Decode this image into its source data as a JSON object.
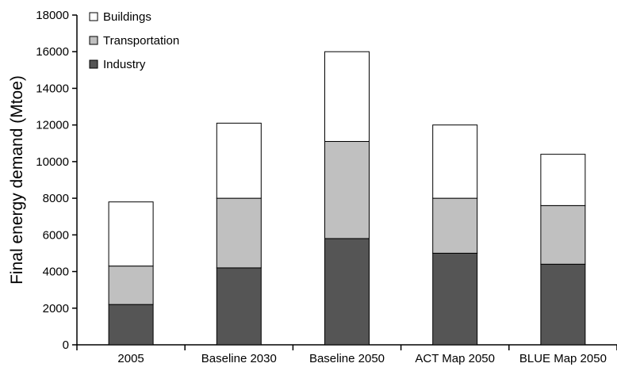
{
  "chart_data": {
    "type": "bar",
    "stacked": true,
    "title": "",
    "xlabel": "",
    "ylabel": "Final energy demand (Mtoe)",
    "ylim": [
      0,
      18000
    ],
    "yticks": [
      0,
      2000,
      4000,
      6000,
      8000,
      10000,
      12000,
      14000,
      16000,
      18000
    ],
    "categories": [
      "2005",
      "Baseline 2030",
      "Baseline 2050",
      "ACT Map 2050",
      "BLUE Map 2050"
    ],
    "series": [
      {
        "name": "Industry",
        "color": "#555555",
        "values": [
          2200,
          4200,
          5800,
          5000,
          4400
        ]
      },
      {
        "name": "Transportation",
        "color": "#c0c0c0",
        "values": [
          2100,
          3800,
          5300,
          3000,
          3200
        ]
      },
      {
        "name": "Buildings",
        "color": "#ffffff",
        "values": [
          3500,
          4100,
          4900,
          4000,
          2800
        ]
      }
    ],
    "legend": {
      "placement": "top-left",
      "order": [
        "Buildings",
        "Transportation",
        "Industry"
      ]
    },
    "grid": false
  }
}
